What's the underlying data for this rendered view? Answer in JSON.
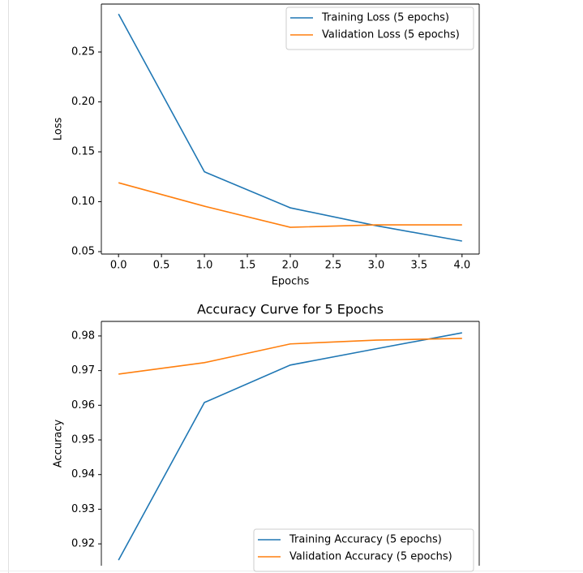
{
  "chart_data": [
    {
      "type": "line",
      "xlabel": "Epochs",
      "ylabel": "Loss",
      "x": [
        0,
        1,
        2,
        3,
        4
      ],
      "series": [
        {
          "name": "Training Loss (5 epochs)",
          "color": "#1f77b4",
          "values": [
            0.288,
            0.13,
            0.0939,
            0.076,
            0.0606
          ]
        },
        {
          "name": "Validation Loss (5 epochs)",
          "color": "#ff7f0e",
          "values": [
            0.119,
            0.0955,
            0.0744,
            0.0768,
            0.0768
          ]
        }
      ],
      "xlim": [
        -0.2,
        4.2
      ],
      "xticks": [
        {
          "value": 0,
          "label": "0.0"
        },
        {
          "value": 0.5,
          "label": "0.5"
        },
        {
          "value": 1,
          "label": "1.0"
        },
        {
          "value": 1.5,
          "label": "1.5"
        },
        {
          "value": 2,
          "label": "2.0"
        },
        {
          "value": 2.5,
          "label": "2.5"
        },
        {
          "value": 3,
          "label": "3.0"
        },
        {
          "value": 3.5,
          "label": "3.5"
        },
        {
          "value": 4,
          "label": "4.0"
        }
      ],
      "ylim": [
        0.0476,
        0.298
      ],
      "yticks": [
        0.05,
        {
          "value": 0.1,
          "label": "0.10"
        },
        0.15,
        {
          "value": 0.2,
          "label": "0.20"
        },
        0.25
      ],
      "legend": "upper right"
    },
    {
      "type": "line",
      "title": "Accuracy Curve for 5 Epochs",
      "ylabel": "Accuracy",
      "x": [
        0,
        1,
        2,
        3,
        4
      ],
      "series": [
        {
          "name": "Training Accuracy (5 epochs)",
          "color": "#1f77b4",
          "values": [
            0.9153,
            0.9608,
            0.9716,
            0.9763,
            0.9809
          ]
        },
        {
          "name": "Validation Accuracy (5 epochs)",
          "color": "#ff7f0e",
          "values": [
            0.969,
            0.9723,
            0.9777,
            0.9788,
            0.9793
          ]
        }
      ],
      "xlim": [
        -0.2,
        4.2
      ],
      "ylim": [
        0.9137,
        0.9842
      ],
      "yticks": [
        0.92,
        0.93,
        0.94,
        0.95,
        0.96,
        0.97,
        0.98
      ],
      "legend": "lower right"
    }
  ]
}
